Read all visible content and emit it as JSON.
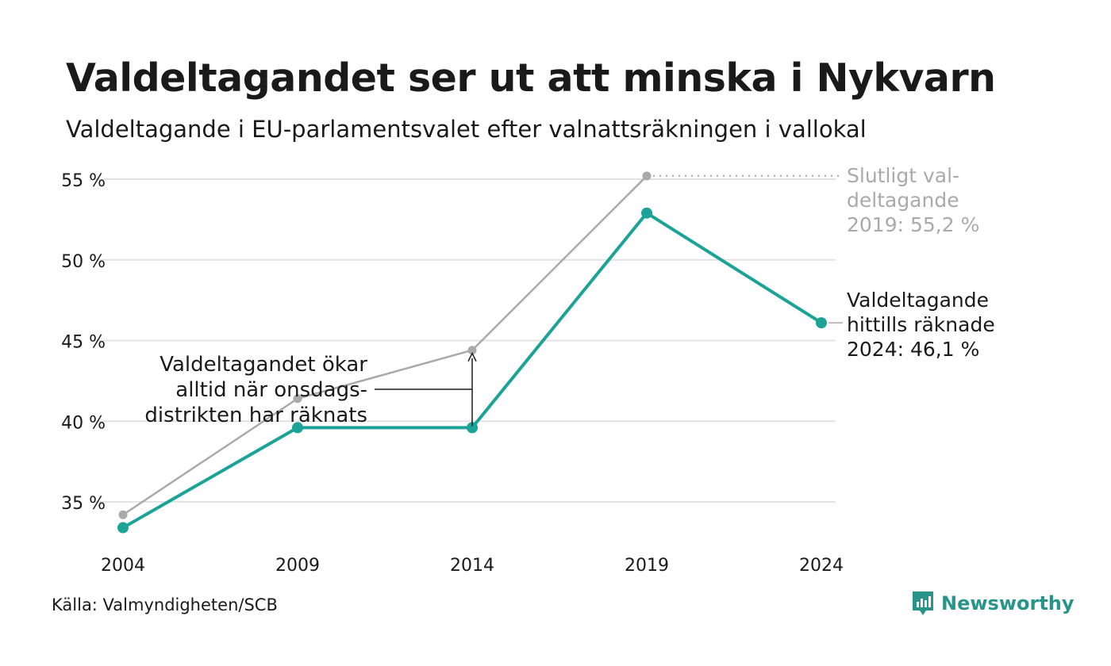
{
  "header": {
    "title": "Valdeltagandet ser ut att minska i Nykvarn",
    "subtitle": "Valdeltagande i EU-parlamentsvalet efter valnattsräkningen i vallokal"
  },
  "footer": {
    "source": "Källa: Valmyndigheten/SCB",
    "brand": "Newsworthy",
    "brand_icon": "newsworthy-logo-icon"
  },
  "chart_data": {
    "type": "line",
    "x": [
      2004,
      2009,
      2014,
      2019,
      2024
    ],
    "x_ticks": [
      "2004",
      "2009",
      "2014",
      "2019",
      "2024"
    ],
    "y_ticks": [
      "35 %",
      "40 %",
      "45 %",
      "50 %",
      "55 %"
    ],
    "y_tick_values": [
      35,
      40,
      45,
      50,
      55
    ],
    "ylim": [
      32.8,
      57
    ],
    "grid": true,
    "series": [
      {
        "key": "final",
        "color": "#aaaaaa",
        "values": [
          34.2,
          41.4,
          44.4,
          55.2,
          null
        ]
      },
      {
        "key": "counted",
        "color": "#1aa396",
        "values": [
          33.4,
          39.6,
          39.6,
          52.9,
          46.1
        ]
      }
    ],
    "annotations": {
      "final_label": [
        "Slutligt val-",
        "deltagande",
        "2019: 55,2 %"
      ],
      "counted_label": [
        "Valdeltagande",
        "hittills räknade",
        "2024: 46,1 %"
      ],
      "wednesday_note": [
        "Valdeltagandet ökar",
        "alltid när onsdags-",
        "distrikten har räknats"
      ]
    }
  }
}
